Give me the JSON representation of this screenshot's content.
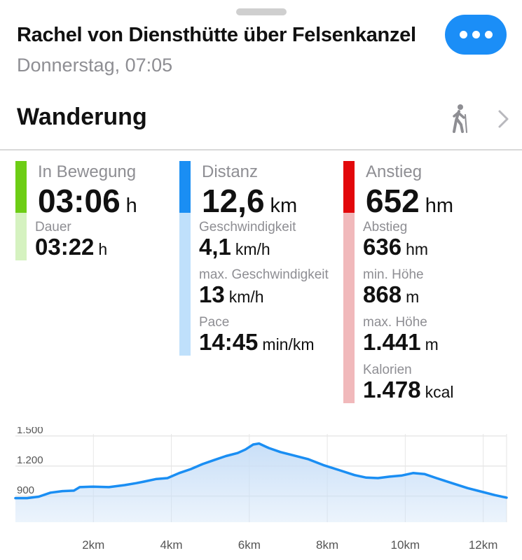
{
  "header": {
    "title": "Rachel von Diensthütte über Felsenkanzel",
    "subtitle": "Donnerstag, 07:05",
    "more_icon": "ellipsis-icon",
    "accent": "#1b8ef7"
  },
  "activity": {
    "type": "Wanderung",
    "icon": "hiker-icon",
    "chevron_icon": "chevron-right-icon"
  },
  "stats": {
    "time": {
      "color": "#6dcd15",
      "light_color": "#d5f2c0",
      "main_label": "In Bewegung",
      "main_value": "03:06",
      "main_unit": "h",
      "items": [
        {
          "label": "Dauer",
          "value": "03:22",
          "unit": "h"
        }
      ]
    },
    "distance": {
      "color": "#1a8ef3",
      "light_color": "#bfe0fb",
      "main_label": "Distanz",
      "main_value": "12,6",
      "main_unit": "km",
      "items": [
        {
          "label": "Geschwindigkeit",
          "value": "4,1",
          "unit": "km/h"
        },
        {
          "label": "max. Geschwindigkeit",
          "value": "13",
          "unit": "km/h"
        },
        {
          "label": "Pace",
          "value": "14:45",
          "unit": "min/km"
        }
      ]
    },
    "elevation": {
      "color": "#e2080b",
      "light_color": "#f1b9bb",
      "main_label": "Anstieg",
      "main_value": "652",
      "main_unit": "hm",
      "items": [
        {
          "label": "Abstieg",
          "value": "636",
          "unit": "hm"
        },
        {
          "label": "min. Höhe",
          "value": "868",
          "unit": "m"
        },
        {
          "label": "max. Höhe",
          "value": "1.441",
          "unit": "m"
        },
        {
          "label": "Kalorien",
          "value": "1.478",
          "unit": "kcal"
        }
      ]
    }
  },
  "chart_data": {
    "type": "area",
    "xlabel": "",
    "ylabel": "",
    "x_ticks": [
      2,
      4,
      6,
      8,
      10,
      12
    ],
    "x_tick_labels": [
      "2km",
      "4km",
      "6km",
      "8km",
      "10km",
      "12km"
    ],
    "y_ticks": [
      900,
      1200,
      1500
    ],
    "y_tick_labels": [
      "900",
      "1.200",
      "1.500"
    ],
    "xlim": [
      0,
      12.6
    ],
    "ylim": [
      640,
      1520
    ],
    "grid": true,
    "line_color": "#1a8ef3",
    "fill_color": "#c9dff7",
    "x": [
      0,
      0.3,
      0.6,
      0.9,
      1.2,
      1.5,
      1.65,
      2.0,
      2.4,
      2.8,
      3.1,
      3.3,
      3.6,
      3.9,
      4.2,
      4.5,
      4.8,
      5.1,
      5.4,
      5.7,
      5.9,
      6.1,
      6.25,
      6.5,
      6.8,
      7.1,
      7.5,
      7.9,
      8.3,
      8.7,
      9.0,
      9.3,
      9.6,
      9.9,
      10.2,
      10.5,
      10.8,
      11.2,
      11.6,
      12.0,
      12.3,
      12.6
    ],
    "y": [
      880,
      880,
      895,
      935,
      950,
      955,
      990,
      995,
      990,
      1010,
      1030,
      1045,
      1070,
      1080,
      1130,
      1170,
      1220,
      1260,
      1300,
      1330,
      1365,
      1415,
      1425,
      1380,
      1340,
      1310,
      1270,
      1210,
      1160,
      1110,
      1085,
      1080,
      1095,
      1105,
      1130,
      1120,
      1080,
      1030,
      980,
      940,
      910,
      885
    ]
  }
}
